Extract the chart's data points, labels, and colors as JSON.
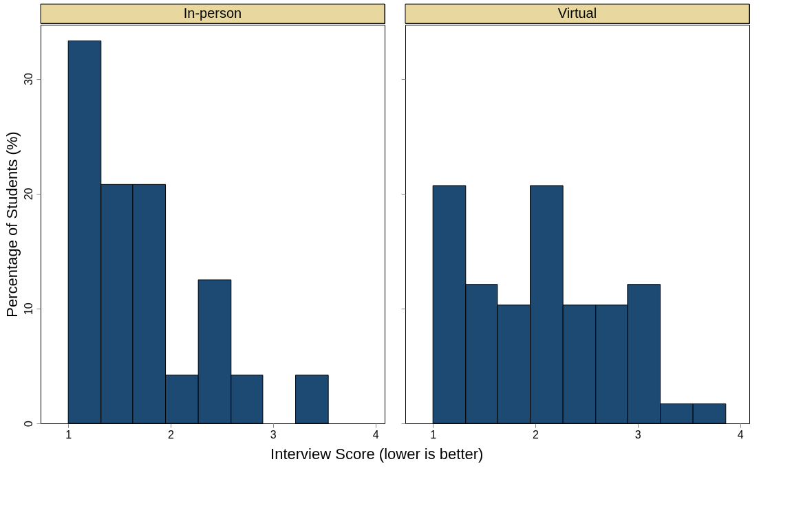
{
  "chart_data": [
    {
      "type": "histogram",
      "title": "In-person",
      "xlabel": "Interview Score (lower is better)",
      "ylabel": "Percentage of Students (%)",
      "bins": [
        1.0,
        1.32,
        1.63,
        1.95,
        2.27,
        2.59,
        2.9,
        3.22,
        3.54
      ],
      "values": [
        33.3,
        20.8,
        20.8,
        4.2,
        12.5,
        4.2,
        0,
        4.2
      ],
      "color": "#1c4a72",
      "xlim": [
        0.73,
        4.09
      ],
      "xticks": [
        1,
        2,
        3,
        4
      ],
      "ylim": [
        0,
        34.7
      ],
      "yticks": [
        0,
        10,
        20,
        30
      ],
      "grid": false
    },
    {
      "type": "histogram",
      "title": "Virtual",
      "bins": [
        1.0,
        1.32,
        1.63,
        1.95,
        2.27,
        2.59,
        2.9,
        3.22,
        3.54,
        3.86
      ],
      "values": [
        20.7,
        12.1,
        10.3,
        20.7,
        10.3,
        10.3,
        12.1,
        1.7,
        1.7
      ],
      "color": "#1c4a72",
      "xlim": [
        0.73,
        4.09
      ],
      "xticks": [
        1,
        2,
        3,
        4
      ],
      "ylim": [
        0,
        34.7
      ],
      "yticks": [
        0,
        10,
        20,
        30
      ],
      "grid": false,
      "tick_labels": "x"
    }
  ]
}
